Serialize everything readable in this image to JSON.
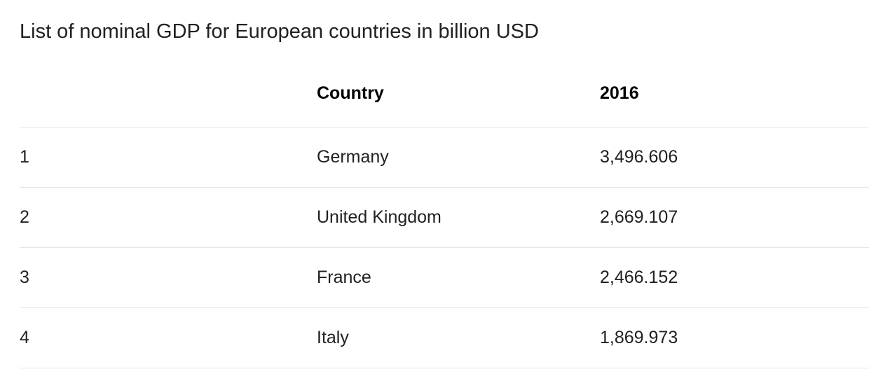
{
  "title": "List of nominal GDP for European countries in billion USD",
  "table": {
    "columns": [
      "",
      "Country",
      "2016"
    ],
    "rows": [
      {
        "rank": "1",
        "country": "Germany",
        "value": "3,496.606"
      },
      {
        "rank": "2",
        "country": "United Kingdom",
        "value": "2,669.107"
      },
      {
        "rank": "3",
        "country": "France",
        "value": "2,466.152"
      },
      {
        "rank": "4",
        "country": "Italy",
        "value": "1,869.973"
      }
    ]
  }
}
